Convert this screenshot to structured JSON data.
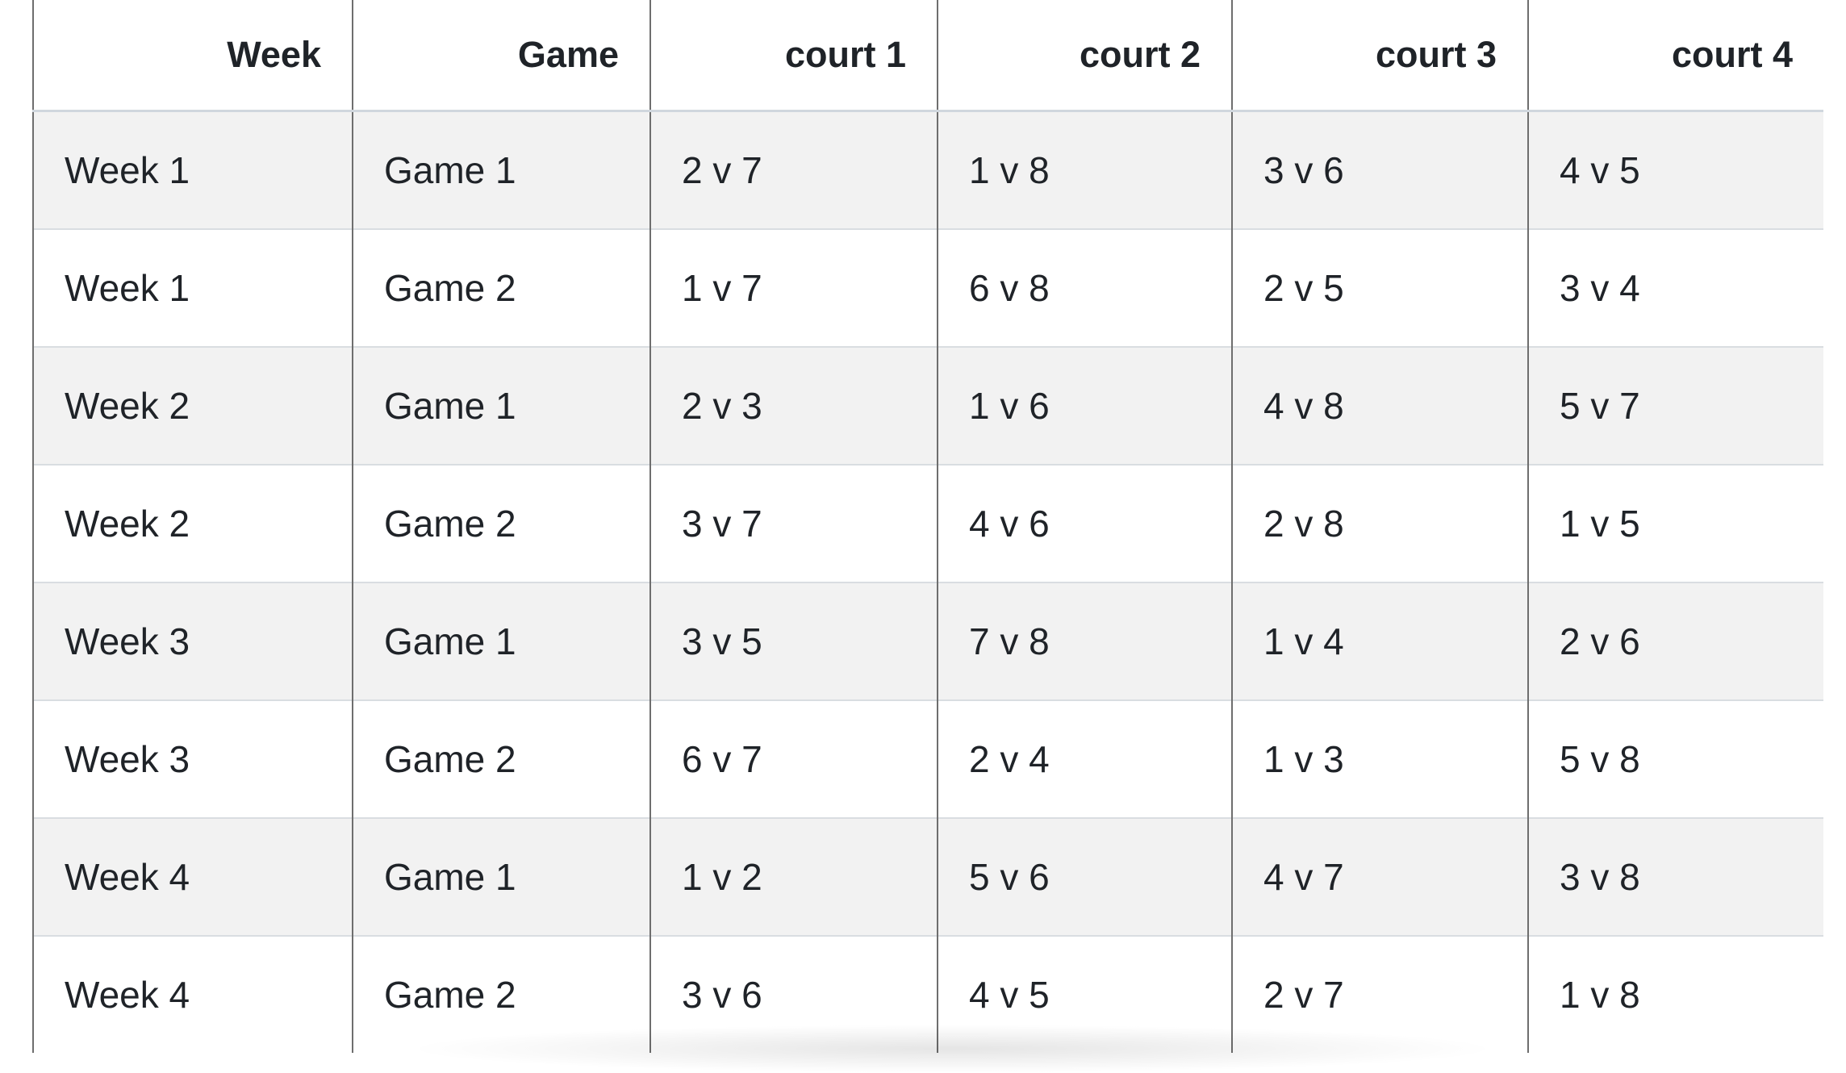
{
  "table": {
    "headers": [
      "Week",
      "Game",
      "court 1",
      "court 2",
      "court 3",
      "court 4"
    ],
    "rows": [
      [
        "Week 1",
        "Game 1",
        "2 v 7",
        "1 v 8",
        "3 v 6",
        "4 v 5"
      ],
      [
        "Week 1",
        "Game 2",
        "1 v 7",
        "6 v 8",
        "2 v 5",
        "3 v 4"
      ],
      [
        "Week 2",
        "Game 1",
        "2 v 3",
        "1 v 6",
        "4 v 8",
        "5 v 7"
      ],
      [
        "Week 2",
        "Game 2",
        "3 v 7",
        "4 v 6",
        "2 v 8",
        "1 v 5"
      ],
      [
        "Week 3",
        "Game 1",
        "3 v 5",
        "7 v 8",
        "1 v 4",
        "2 v 6"
      ],
      [
        "Week 3",
        "Game 2",
        "6 v 7",
        "2 v 4",
        "1 v 3",
        "5 v 8"
      ],
      [
        "Week 4",
        "Game 1",
        "1 v 2",
        "5 v 6",
        "4 v 7",
        "3 v 8"
      ],
      [
        "Week 4",
        "Game 2",
        "3 v 6",
        "4 v 5",
        "2 v 7",
        "1 v 8"
      ]
    ]
  }
}
